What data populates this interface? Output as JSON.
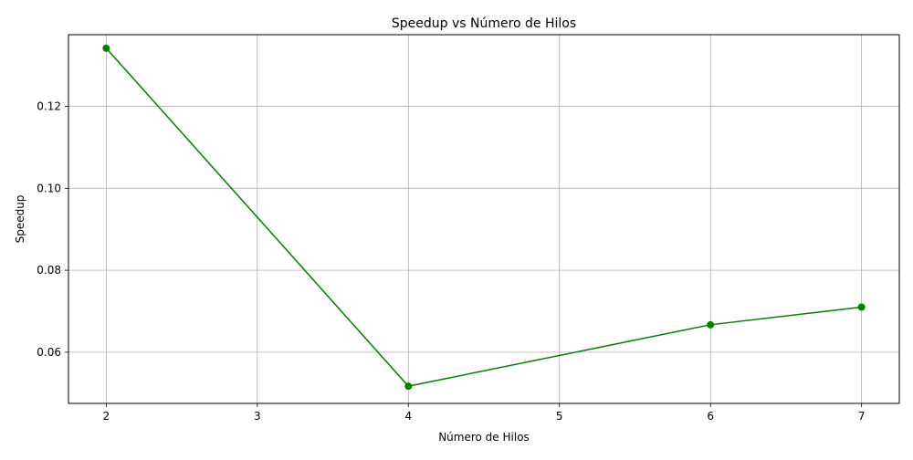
{
  "chart_data": {
    "type": "line",
    "title": "Speedup vs Número de Hilos",
    "xlabel": "Número de Hilos",
    "ylabel": "Speedup",
    "xlim": [
      1.75,
      7.25
    ],
    "ylim": [
      0.0475,
      0.1375
    ],
    "x_ticks": [
      2,
      3,
      4,
      5,
      6,
      7
    ],
    "x_tick_labels": [
      "2",
      "3",
      "4",
      "5",
      "6",
      "7"
    ],
    "y_ticks": [
      0.06,
      0.08,
      0.1,
      0.12
    ],
    "y_tick_labels": [
      "0.06",
      "0.08",
      "0.10",
      "0.12"
    ],
    "grid": true,
    "series": [
      {
        "x": [
          2,
          4,
          6,
          7
        ],
        "y": [
          0.1342,
          0.0517,
          0.0667,
          0.071
        ],
        "color": "#008000",
        "marker": "circle"
      }
    ]
  }
}
